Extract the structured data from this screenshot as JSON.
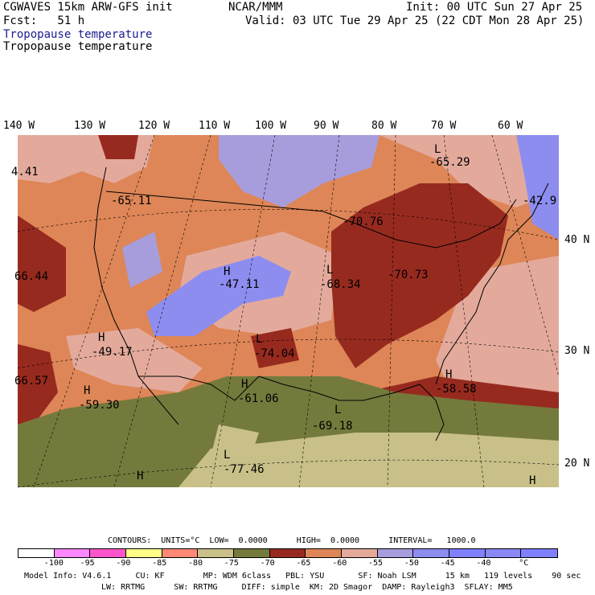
{
  "header": {
    "model": "CGWAVES 15km ARW-GFS init",
    "org": "NCAR/MMM",
    "init": "Init: 00 UTC Sun 27 Apr 25",
    "fcst": "Fcst:   51 h",
    "valid": "Valid: 03 UTC Tue 29 Apr 25 (22 CDT Mon 28 Apr 25)",
    "field_title_1": "Tropopause temperature",
    "field_title_2": "Tropopause temperature"
  },
  "longitude_labels": [
    "140 W",
    "130 W",
    "120 W",
    "110 W",
    "100 W",
    "90 W",
    "80 W",
    "70 W",
    "60 W"
  ],
  "latitude_labels": [
    "40 N",
    "30 N",
    "20 N"
  ],
  "map_labels": {
    "extrema": [
      {
        "kind": "L",
        "value": "-65.29"
      },
      {
        "kind": "",
        "value": "-42.9"
      },
      {
        "kind": "",
        "value": "-65.11"
      },
      {
        "kind": "",
        "value": "4.41"
      },
      {
        "kind": "",
        "value": "-70.76"
      },
      {
        "kind": "H",
        "value": "-47.11"
      },
      {
        "kind": "L",
        "value": "-68.34"
      },
      {
        "kind": "",
        "value": "-70.73"
      },
      {
        "kind": "",
        "value": "66.44"
      },
      {
        "kind": "H",
        "value": "-49.17"
      },
      {
        "kind": "L",
        "value": "-74.04"
      },
      {
        "kind": "",
        "value": "66.57"
      },
      {
        "kind": "H",
        "value": "-59.30"
      },
      {
        "kind": "H",
        "value": "-61.06"
      },
      {
        "kind": "H",
        "value": "-58.58"
      },
      {
        "kind": "L",
        "value": "-69.18"
      },
      {
        "kind": "L",
        "value": "-77.46"
      },
      {
        "kind": "H",
        "value": ""
      },
      {
        "kind": "H",
        "value": ""
      }
    ]
  },
  "contours": {
    "line": "CONTOURS:  UNITS=°C  LOW=  0.0000      HIGH=  0.0000      INTERVAL=   1000.0"
  },
  "colorbar": {
    "colors": [
      "#ffffff",
      "#ff88ff",
      "#ff55cc",
      "#ffff88",
      "#ff8877",
      "#c8c088",
      "#747a3c",
      "#972a1f",
      "#de8657",
      "#e3aa9c",
      "#a79ddc",
      "#8d8df0",
      "#8080ff",
      "#8b87f5",
      "#8080ff"
    ],
    "labels": [
      "-100",
      "-95",
      "-90",
      "-85",
      "-80",
      "-75",
      "-70",
      "-65",
      "-60",
      "-55",
      "-50",
      "-45",
      "-40",
      "°C"
    ]
  },
  "footer": {
    "line1": "Model Info: V4.6.1     CU: KF        MP: WDM 6class   PBL: YSU       SF: Noah LSM      15 km   119 levels    90 sec",
    "line2": "LW: RRTMG      SW: RRTMG     DIFF: simple  KM: 2D Smagor  DAMP: Rayleigh3  SFLAY: MM5"
  }
}
